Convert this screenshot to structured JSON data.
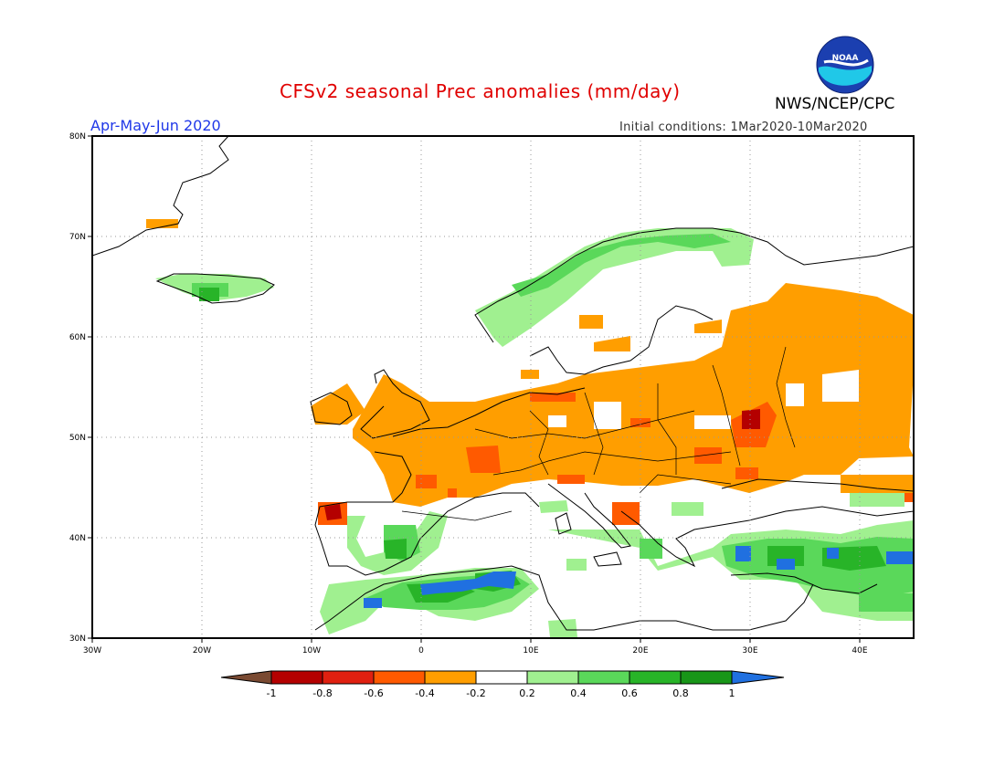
{
  "header": {
    "title": "CFSv2 seasonal Prec anomalies (mm/day)",
    "agency": "NWS/NCEP/CPC",
    "period": "Apr-May-Jun 2020",
    "initial_conditions": "Initial conditions: 1Mar2020-10Mar2020",
    "logo_text": "NOAA"
  },
  "axes": {
    "lat_labels": [
      "80N",
      "70N",
      "60N",
      "50N",
      "40N",
      "30N"
    ],
    "lon_labels": [
      "30W",
      "20W",
      "10W",
      "0",
      "10E",
      "20E",
      "30E",
      "40E"
    ]
  },
  "colorbar": {
    "labels": [
      "-1",
      "-0.8",
      "-0.6",
      "-0.4",
      "-0.2",
      "0.2",
      "0.4",
      "0.6",
      "0.8",
      "1"
    ],
    "colors": [
      "#7a4a32",
      "#b40000",
      "#e02010",
      "#ff5a00",
      "#ff9e00",
      "#ffffff",
      "#a0f090",
      "#5ad85a",
      "#28b428",
      "#189618",
      "#2070e0"
    ]
  },
  "map_colors": {
    "orange": "#ff9e00",
    "orange_red": "#ff5a00",
    "red": "#e02010",
    "dark_red": "#b40000",
    "light_green": "#a0f090",
    "green": "#5ad85a",
    "mid_green": "#28b428",
    "dark_green": "#189618",
    "blue": "#2070e0"
  }
}
